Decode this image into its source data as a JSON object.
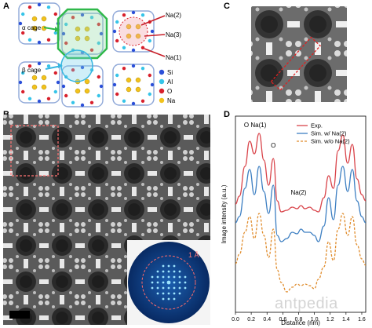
{
  "panels": {
    "a": "A",
    "b": "B",
    "c": "C",
    "d": "D"
  },
  "structure": {
    "alpha_label": "α cage",
    "beta_label": "β cage",
    "callouts": [
      "Na(2)",
      "Na(3)",
      "Na(1)"
    ],
    "legend": [
      {
        "label": "Si",
        "color": "#2b4fd8"
      },
      {
        "label": "Al",
        "color": "#36c4e8"
      },
      {
        "label": "O",
        "color": "#d8202c"
      },
      {
        "label": "Na",
        "color": "#f2c21b"
      }
    ]
  },
  "fft": {
    "resolution_label": "1 Å"
  },
  "chart_data": {
    "type": "line",
    "title": "",
    "xlabel": "Distance (nm)",
    "ylabel": "Image intensity (a.u.)",
    "xlim": [
      0,
      1.65
    ],
    "xticks": [
      "0.0",
      "0.2",
      "0.4",
      "0.6",
      "0.8",
      "1.0",
      "1.2",
      "1.4",
      "1.6"
    ],
    "legend_position": "top-center",
    "annotations": [
      "O Na(1)",
      "O",
      "Na(2)"
    ],
    "series": [
      {
        "name": "Exp.",
        "color": "#d9444a",
        "dash": "solid",
        "x": [
          0,
          0.05,
          0.12,
          0.18,
          0.24,
          0.3,
          0.36,
          0.42,
          0.48,
          0.53,
          0.58,
          0.65,
          0.72,
          0.78,
          0.83,
          0.88,
          0.94,
          1.0,
          1.05,
          1.12,
          1.18,
          1.24,
          1.3,
          1.36,
          1.42,
          1.48,
          1.54,
          1.6,
          1.65
        ],
        "y": [
          4.4,
          4.9,
          6.8,
          8.4,
          7.6,
          8.9,
          7.2,
          5.6,
          7.3,
          4.6,
          3.9,
          4.0,
          4.2,
          4.1,
          4.3,
          4.1,
          4.2,
          4.0,
          3.9,
          4.8,
          6.2,
          5.4,
          7.8,
          8.8,
          7.0,
          8.2,
          6.0,
          5.0,
          4.6
        ]
      },
      {
        "name": "Sim. w/ Na(2)",
        "color": "#3d7fc2",
        "dash": "solid",
        "x": [
          0,
          0.05,
          0.12,
          0.18,
          0.24,
          0.3,
          0.36,
          0.42,
          0.48,
          0.53,
          0.58,
          0.65,
          0.72,
          0.78,
          0.83,
          0.88,
          0.94,
          1.0,
          1.05,
          1.12,
          1.18,
          1.24,
          1.3,
          1.36,
          1.42,
          1.48,
          1.54,
          1.6,
          1.65
        ],
        "y": [
          3.2,
          3.6,
          5.4,
          6.6,
          5.0,
          6.8,
          5.2,
          3.8,
          5.6,
          2.4,
          2.0,
          2.2,
          2.6,
          2.5,
          2.8,
          2.6,
          2.6,
          2.4,
          2.0,
          3.0,
          4.8,
          3.4,
          5.6,
          6.8,
          5.2,
          6.6,
          4.6,
          3.6,
          3.2
        ]
      },
      {
        "name": "Sim. w/o Na(2)",
        "color": "#e08c2c",
        "dash": "dashed",
        "x": [
          0,
          0.05,
          0.12,
          0.18,
          0.24,
          0.3,
          0.36,
          0.42,
          0.48,
          0.53,
          0.58,
          0.65,
          0.72,
          0.78,
          0.83,
          0.88,
          0.94,
          1.0,
          1.05,
          1.12,
          1.18,
          1.24,
          1.3,
          1.36,
          1.42,
          1.48,
          1.54,
          1.6,
          1.65
        ],
        "y": [
          0.6,
          1.2,
          2.6,
          3.6,
          2.2,
          3.8,
          2.4,
          1.0,
          2.8,
          0.2,
          -0.6,
          -1.2,
          -0.9,
          -0.7,
          -0.8,
          -0.7,
          -0.8,
          -1.0,
          -0.4,
          0.4,
          2.0,
          0.8,
          2.8,
          3.8,
          2.4,
          3.6,
          1.8,
          0.9,
          0.5
        ]
      }
    ],
    "ylim": [
      -2.5,
      10
    ]
  },
  "watermark": "antpedia"
}
